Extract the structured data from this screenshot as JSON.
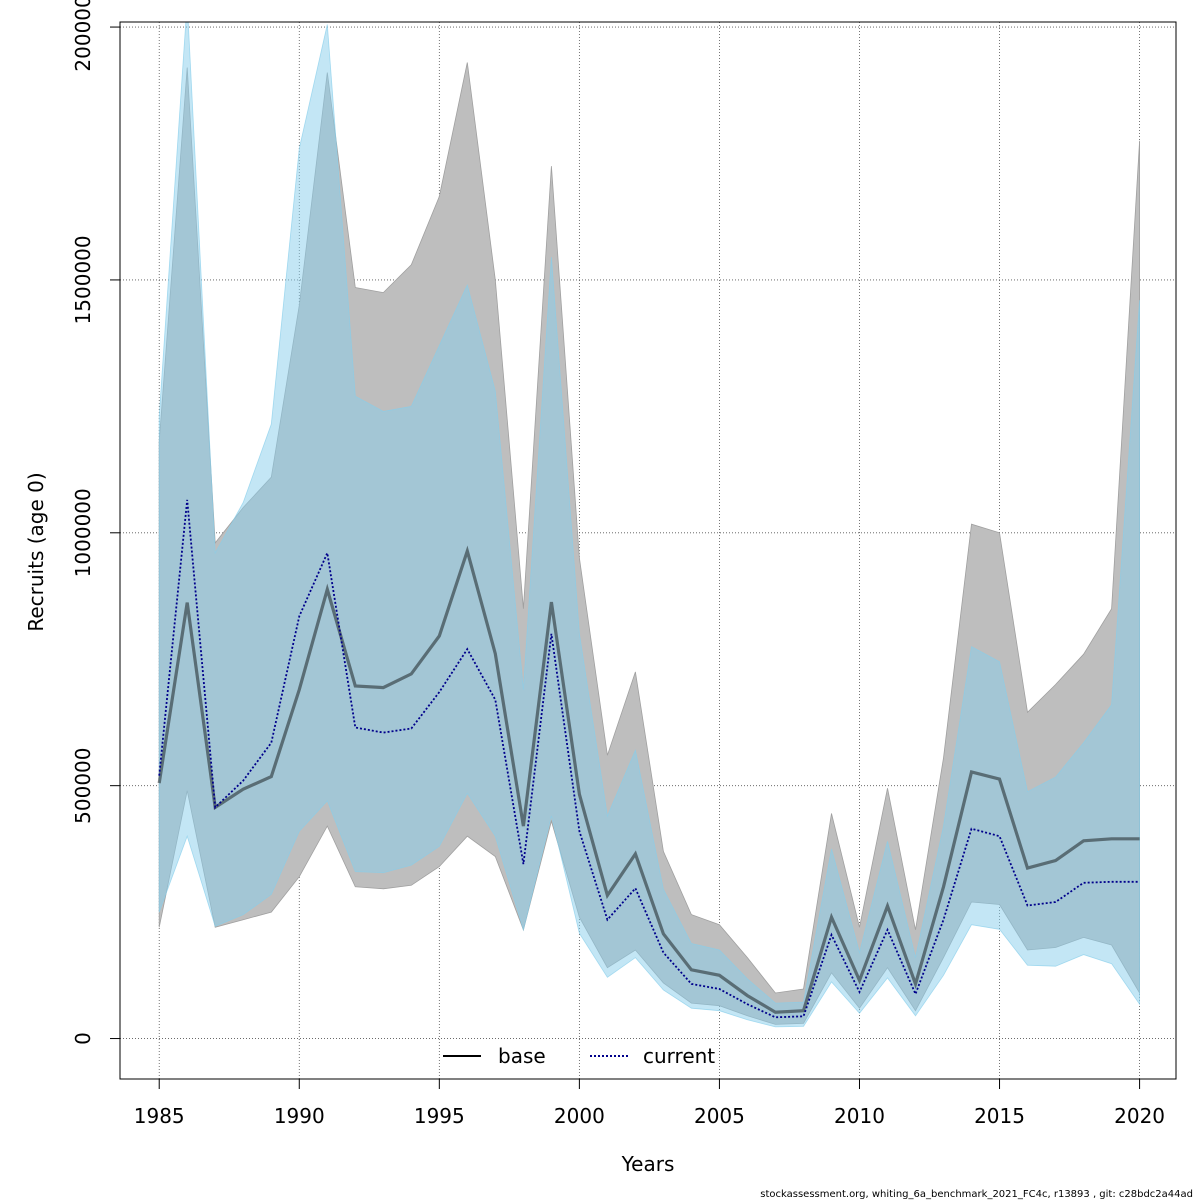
{
  "chart_data": {
    "type": "area",
    "xlabel": "Years",
    "ylabel": "Recruits (age 0)",
    "xlim": [
      1983.6,
      2021.3
    ],
    "ylim": [
      -80000,
      2010000
    ],
    "x_ticks": [
      1985,
      1990,
      1995,
      2000,
      2005,
      2010,
      2015,
      2020
    ],
    "x_tick_labels": [
      "1985",
      "1990",
      "1995",
      "2000",
      "2005",
      "2010",
      "2015",
      "2020"
    ],
    "y_ticks": [
      0,
      500000,
      1000000,
      1500000,
      2000000
    ],
    "y_tick_labels": [
      "0",
      "500000",
      "1000000",
      "1500000",
      "2000000"
    ],
    "grid": true,
    "legend": {
      "position": "bottom-center"
    },
    "x": [
      1985,
      1986,
      1987,
      1988,
      1989,
      1990,
      1991,
      1992,
      1993,
      1994,
      1995,
      1996,
      1997,
      1998,
      1999,
      2000,
      2001,
      2002,
      2003,
      2004,
      2005,
      2006,
      2007,
      2008,
      2009,
      2010,
      2011,
      2012,
      2013,
      2014,
      2015,
      2016,
      2017,
      2018,
      2019,
      2020
    ],
    "series": [
      {
        "name": "base",
        "line_style": "solid",
        "line_color": "#000000",
        "band_color": "#bebebe",
        "values": [
          505000,
          862000,
          457000,
          493000,
          518000,
          690000,
          888000,
          697000,
          694000,
          721000,
          796000,
          964000,
          761000,
          420000,
          863000,
          483000,
          283000,
          365000,
          207000,
          136000,
          125000,
          85000,
          52000,
          55000,
          240000,
          115000,
          262000,
          108000,
          300000,
          527000,
          513000,
          337000,
          352000,
          391000,
          395000,
          395000
        ],
        "lower": [
          220000,
          490000,
          220000,
          235000,
          250000,
          320000,
          420000,
          300000,
          296000,
          303000,
          340000,
          400000,
          360000,
          215000,
          430000,
          240000,
          140000,
          175000,
          110000,
          70000,
          65000,
          45000,
          28000,
          30000,
          130000,
          60000,
          140000,
          55000,
          160000,
          270000,
          265000,
          175000,
          180000,
          200000,
          185000,
          90000
        ],
        "upper": [
          1180000,
          1920000,
          980000,
          1050000,
          1110000,
          1450000,
          1910000,
          1485000,
          1475000,
          1530000,
          1665000,
          1930000,
          1500000,
          850000,
          1725000,
          950000,
          560000,
          725000,
          370000,
          245000,
          225000,
          160000,
          90000,
          98000,
          445000,
          220000,
          495000,
          215000,
          555000,
          1017000,
          1000000,
          645000,
          700000,
          760000,
          850000,
          1775000
        ]
      },
      {
        "name": "current",
        "line_style": "dotted",
        "line_color": "#00008b",
        "band_color": "#87ceeb",
        "values": [
          520000,
          1065000,
          457000,
          510000,
          585000,
          835000,
          960000,
          615000,
          605000,
          613000,
          685000,
          770000,
          670000,
          345000,
          800000,
          410000,
          235000,
          297000,
          170000,
          108000,
          98000,
          68000,
          42000,
          44000,
          205000,
          92000,
          215000,
          88000,
          235000,
          415000,
          400000,
          263000,
          270000,
          308000,
          310000,
          310000
        ],
        "lower": [
          250000,
          400000,
          222000,
          245000,
          285000,
          410000,
          470000,
          330000,
          328000,
          343000,
          380000,
          485000,
          400000,
          215000,
          440000,
          208000,
          121000,
          160000,
          96000,
          60000,
          55000,
          37000,
          23000,
          24000,
          112000,
          50000,
          120000,
          45000,
          125000,
          225000,
          216000,
          145000,
          143000,
          166000,
          148000,
          68000
        ],
        "upper": [
          1230000,
          2050000,
          960000,
          1060000,
          1215000,
          1760000,
          2005000,
          1270000,
          1240000,
          1250000,
          1370000,
          1490000,
          1280000,
          690000,
          1545000,
          800000,
          440000,
          570000,
          295000,
          188000,
          175000,
          118000,
          70000,
          72000,
          375000,
          170000,
          390000,
          160000,
          420000,
          775000,
          745000,
          488000,
          517000,
          585000,
          660000,
          1460000
        ]
      }
    ]
  },
  "footer": "stockassessment.org, whiting_6a_benchmark_2021_FC4c, r13893 , git: c28bdc2a44ad"
}
